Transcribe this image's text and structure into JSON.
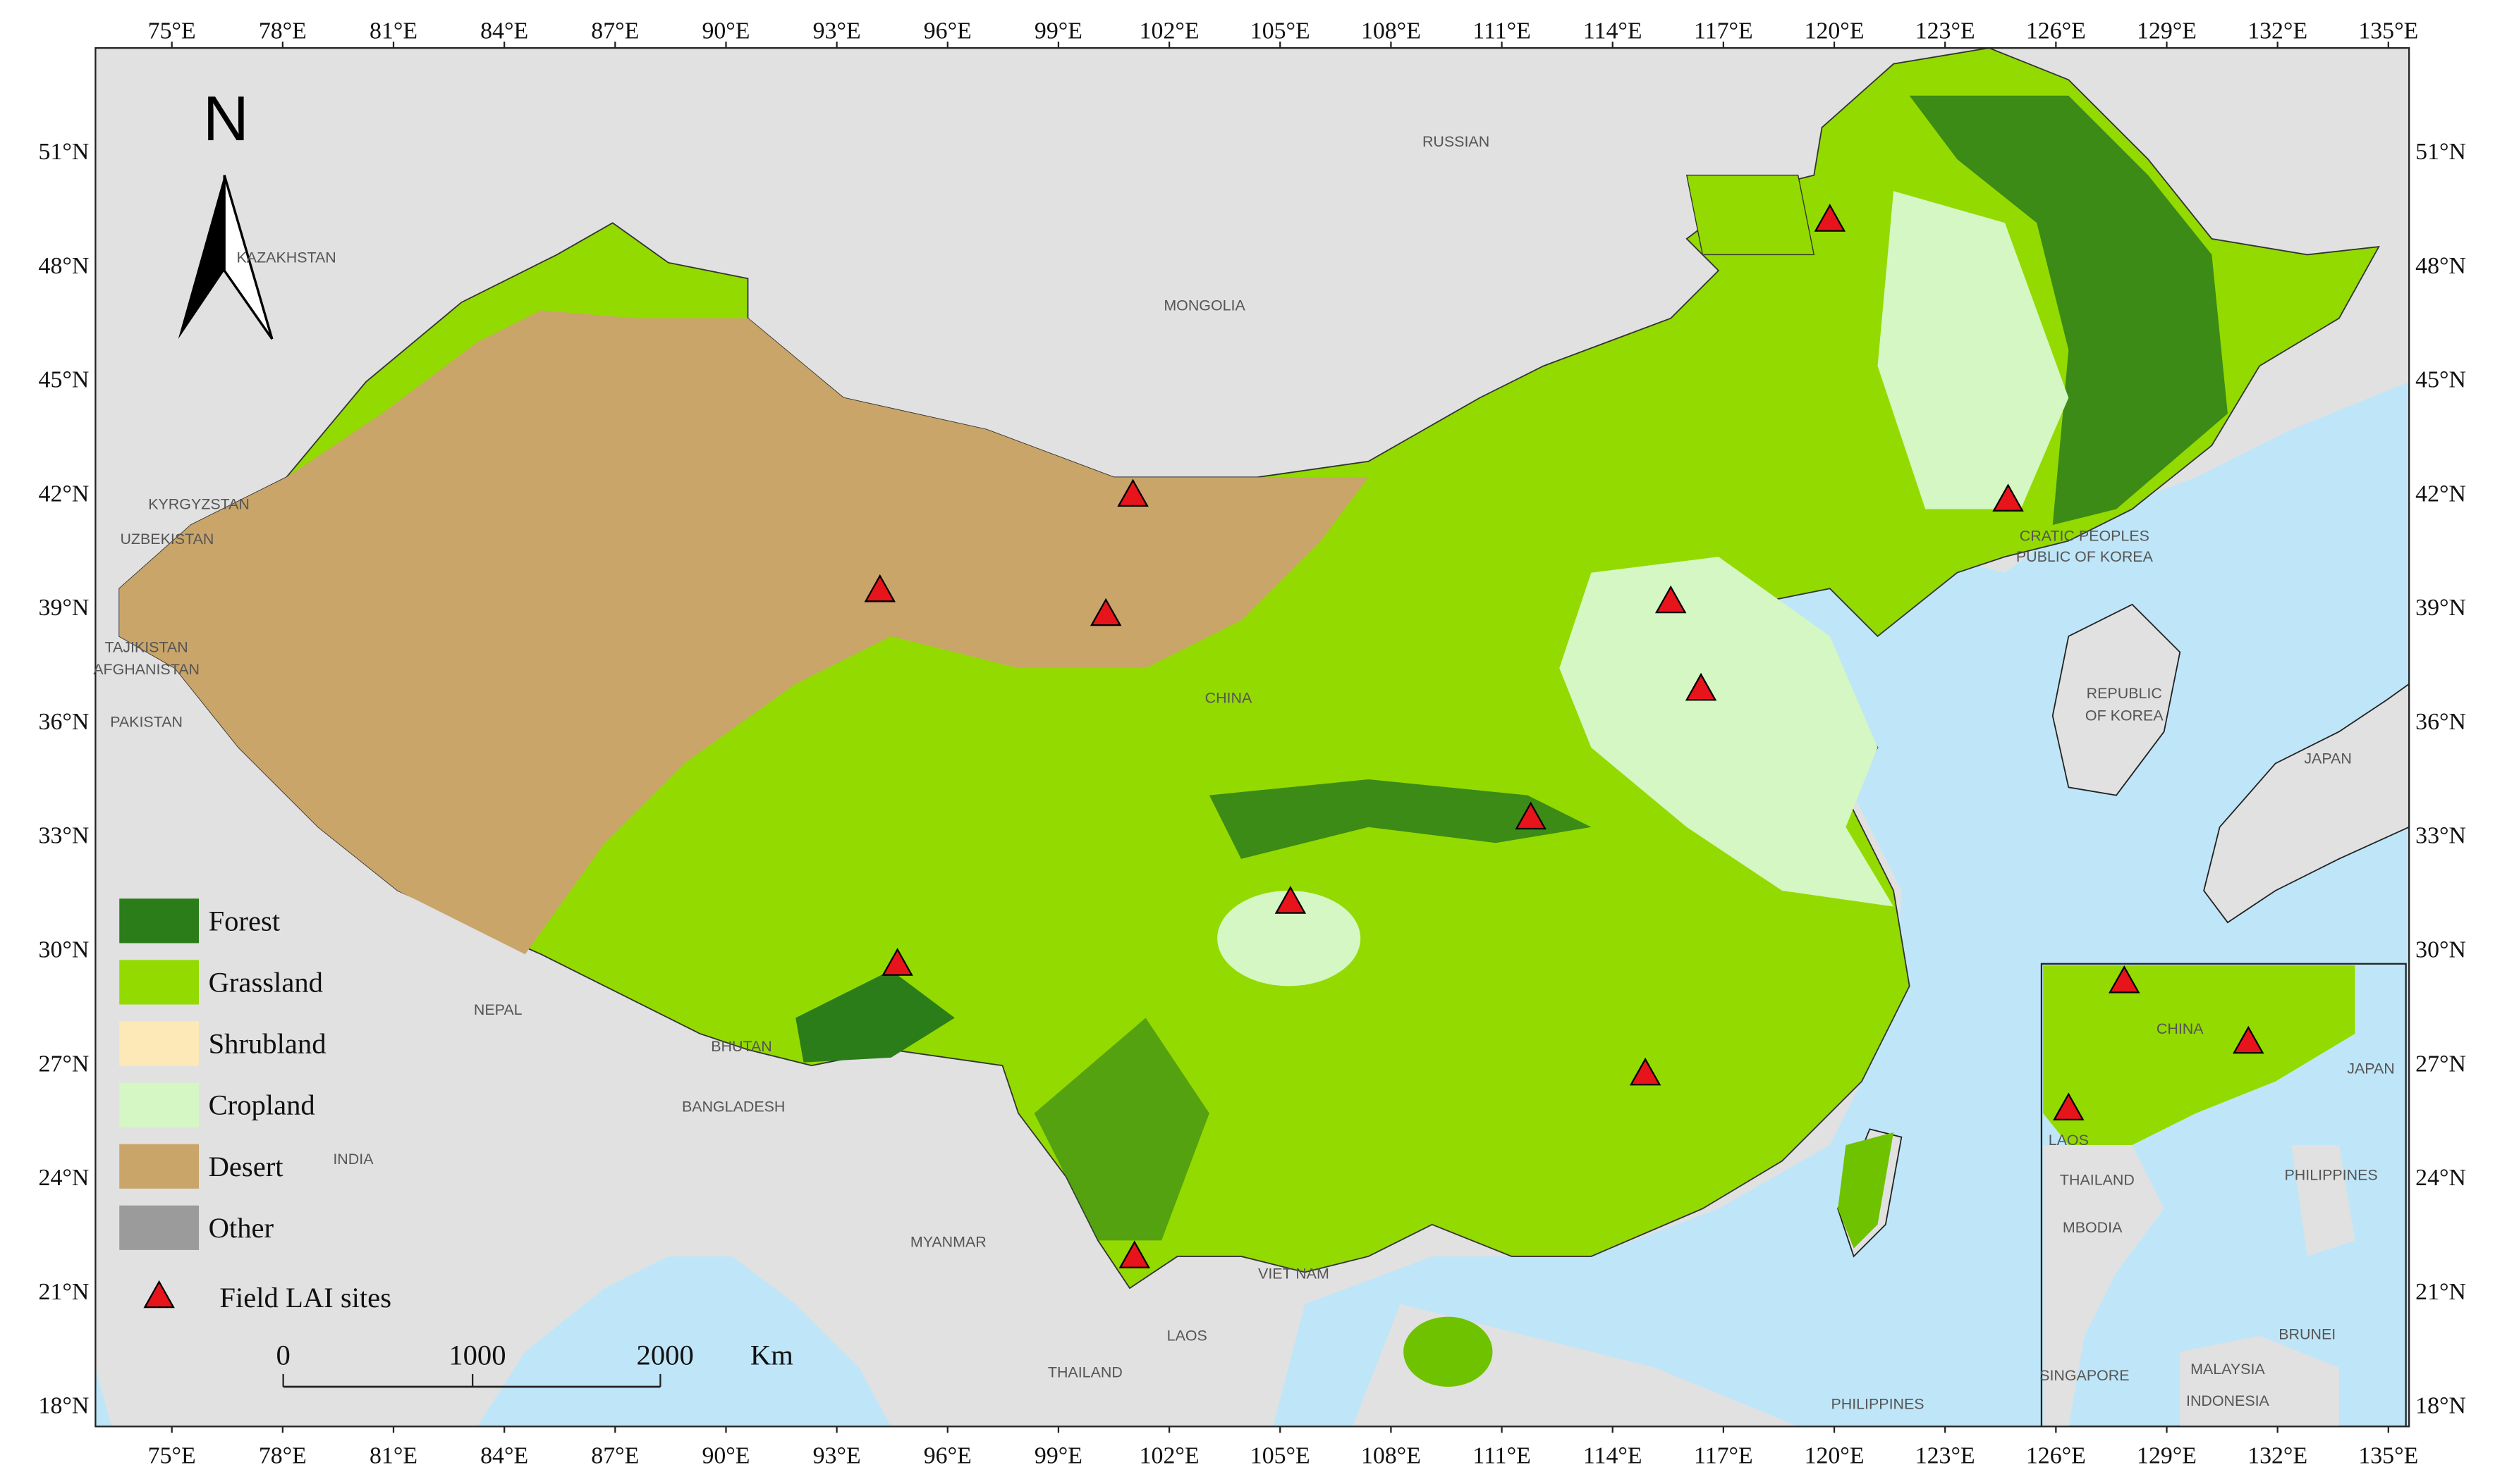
{
  "map": {
    "lon_labels": [
      "75°E",
      "78°E",
      "81°E",
      "84°E",
      "87°E",
      "90°E",
      "93°E",
      "96°E",
      "99°E",
      "102°E",
      "105°E",
      "108°E",
      "111°E",
      "114°E",
      "117°E",
      "120°E",
      "123°E",
      "126°E",
      "129°E",
      "132°E",
      "135°E"
    ],
    "lat_labels": [
      "51°N",
      "48°N",
      "45°N",
      "42°N",
      "39°N",
      "36°N",
      "33°N",
      "30°N",
      "27°N",
      "24°N",
      "21°N",
      "18°N"
    ],
    "countries": [
      "RUSSIAN",
      "MONGOLIA",
      "KAZAKHSTAN",
      "KYRGYZSTAN",
      "UZBEKISTAN",
      "TAJIKISTAN",
      "AFGHANISTAN",
      "PAKISTAN",
      "CHINA",
      "NEPAL",
      "BHUTAN",
      "BANGLADESH",
      "INDIA",
      "MYANMAR",
      "VIET NAM",
      "LAOS",
      "THAILAND",
      "PHILIPPINES",
      "JAPAN",
      "REPUBLIC",
      "OF KOREA",
      "CRATIC PEOPLES",
      "PUBLIC OF KOREA"
    ],
    "inset_countries": [
      "CHINA",
      "JAPAN",
      "LAOS",
      "THAILAND",
      "MBODIA",
      "PHILIPPINES",
      "BRUNEI",
      "SINGAPORE",
      "MALAYSIA",
      "INDONESIA"
    ],
    "north": "N",
    "legend": {
      "classes": [
        "Forest",
        "Grassland",
        "Shrubland",
        "Cropland",
        "Desert",
        "Other"
      ],
      "sites": "Field LAI sites"
    },
    "scale_bar": {
      "labels": [
        "0",
        "1000",
        "2000"
      ],
      "unit": "Km"
    }
  }
}
